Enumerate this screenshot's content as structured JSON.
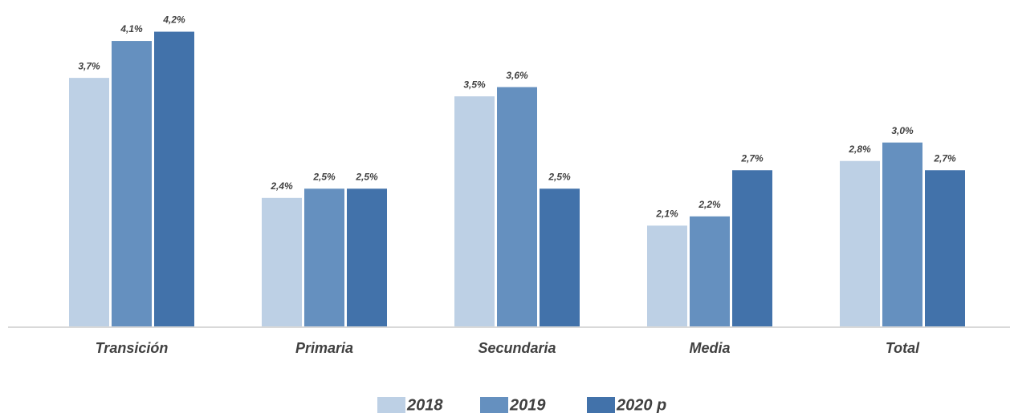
{
  "chart_data": {
    "type": "bar",
    "categories": [
      "Transición",
      "Primaria",
      "Secundaria",
      "Media",
      "Total"
    ],
    "series": [
      {
        "name": "2018",
        "color": "#bdd0e5",
        "values": [
          3.7,
          2.4,
          3.5,
          2.1,
          2.8
        ],
        "value_labels": [
          "3,7%",
          "2,4%",
          "3,5%",
          "2,1%",
          "2,8%"
        ]
      },
      {
        "name": "2019",
        "color": "#6590bf",
        "values": [
          4.1,
          2.5,
          3.6,
          2.2,
          3.0
        ],
        "value_labels": [
          "4,1%",
          "2,5%",
          "3,6%",
          "2,2%",
          "3,0%"
        ]
      },
      {
        "name": "2020 p",
        "color": "#4272aa",
        "values": [
          4.2,
          2.5,
          2.5,
          2.7,
          2.7
        ],
        "value_labels": [
          "4,2%",
          "2,5%",
          "2,5%",
          "2,7%",
          "2,7%"
        ]
      }
    ],
    "ylim": [
      1,
      4.5
    ],
    "legend": "bottom"
  }
}
